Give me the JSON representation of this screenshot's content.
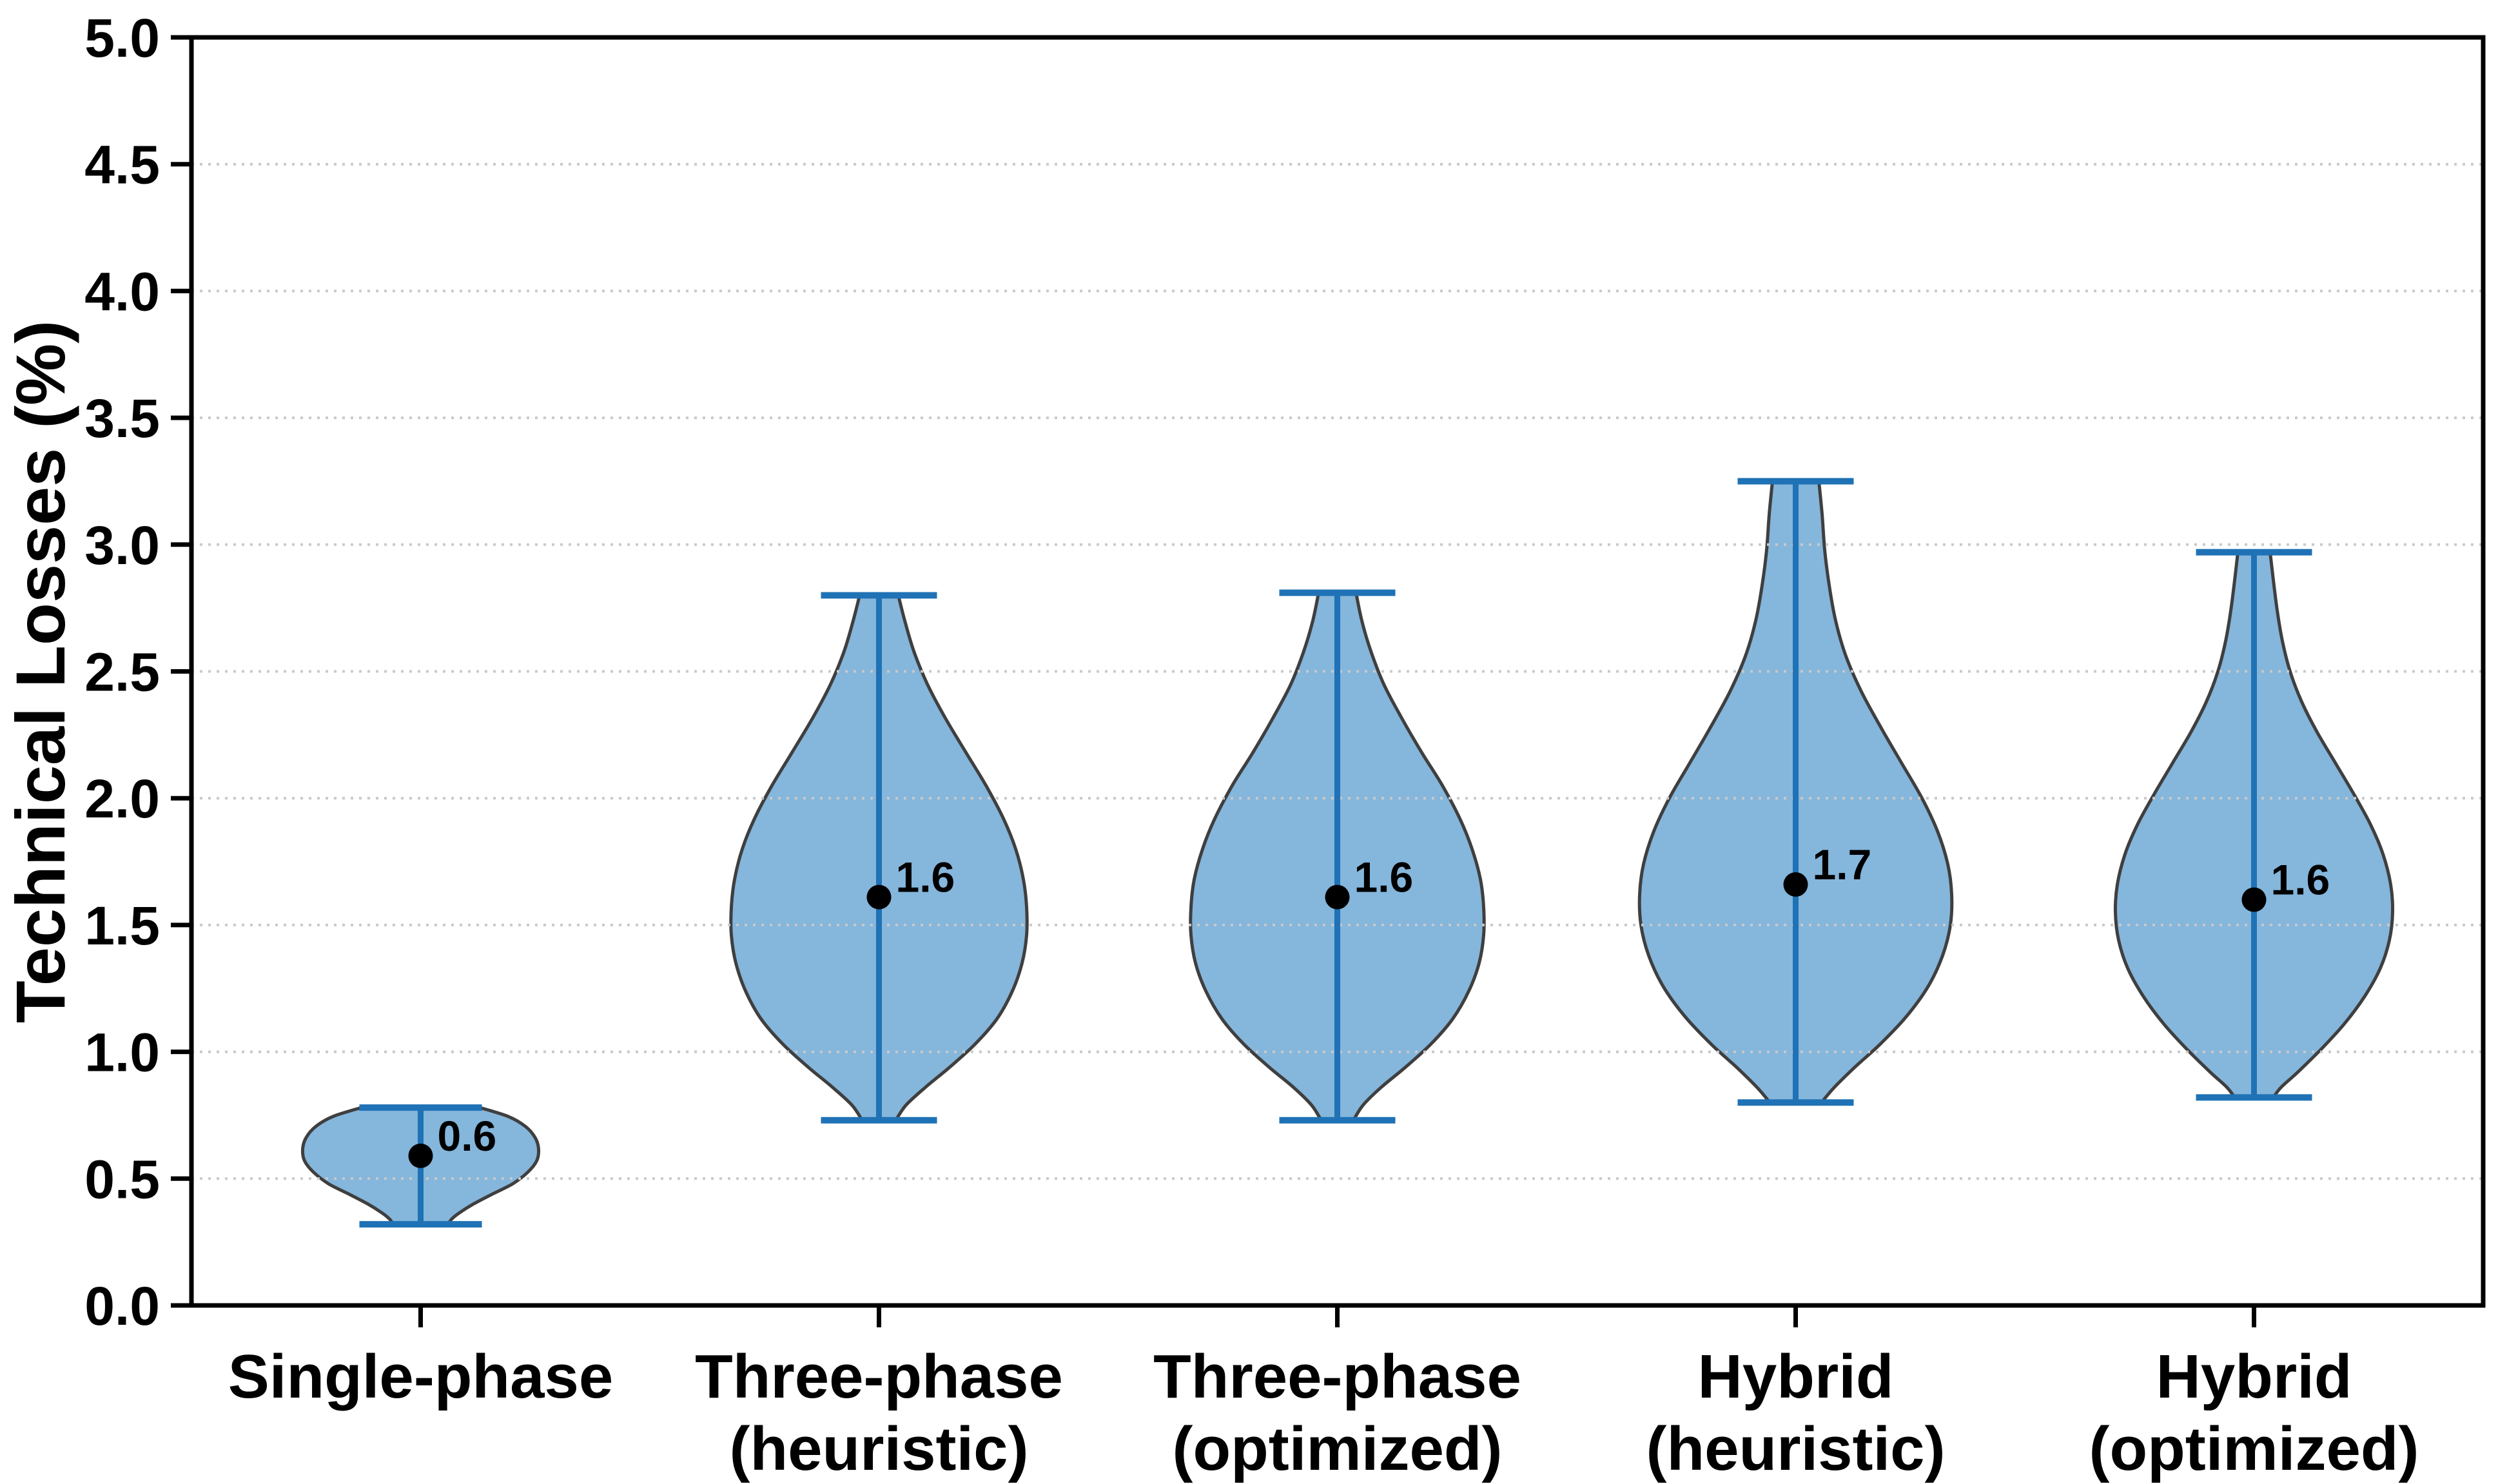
{
  "chart_data": {
    "type": "violin",
    "title": "",
    "xlabel": "",
    "ylabel": "Technical Losses (%)",
    "ylim": [
      0.0,
      5.0
    ],
    "ytick_step": 0.5,
    "ytick_labels": [
      "0.0",
      "0.5",
      "1.0",
      "1.5",
      "2.0",
      "2.5",
      "3.0",
      "3.5",
      "4.0",
      "4.5",
      "5.0"
    ],
    "grid": {
      "orientation": "horizontal",
      "style": "dotted",
      "values": [
        0.5,
        1.0,
        1.5,
        2.0,
        2.5,
        3.0,
        3.5,
        4.0,
        4.5
      ]
    },
    "legend": null,
    "categories": [
      "Single-phase",
      "Three-phase (heuristic)",
      "Three-phase (optimized)",
      "Hybrid (heuristic)",
      "Hybrid (optimized)"
    ],
    "category_label_lines": [
      [
        "Single-phase"
      ],
      [
        "Three-phase",
        "(heuristic)"
      ],
      [
        "Three-phase",
        "(optimized)"
      ],
      [
        "Hybrid",
        "(heuristic)"
      ],
      [
        "Hybrid",
        "(optimized)"
      ]
    ],
    "violins": [
      {
        "name": "Single-phase",
        "mean": 0.59,
        "mean_label": "0.6",
        "whisker_low": 0.32,
        "whisker_high": 0.78,
        "cap_halfwidth": 95,
        "profile": [
          [
            0.78,
            92
          ],
          [
            0.745,
            136
          ],
          [
            0.705,
            163
          ],
          [
            0.66,
            178
          ],
          [
            0.615,
            183
          ],
          [
            0.57,
            180
          ],
          [
            0.525,
            166
          ],
          [
            0.48,
            143
          ],
          [
            0.44,
            112
          ],
          [
            0.4,
            82
          ],
          [
            0.365,
            60
          ],
          [
            0.34,
            48
          ],
          [
            0.32,
            43
          ]
        ]
      },
      {
        "name": "Three-phase (heuristic)",
        "mean": 1.61,
        "mean_label": "1.6",
        "whisker_low": 0.73,
        "whisker_high": 2.8,
        "cap_halfwidth": 90,
        "profile": [
          [
            2.8,
            30
          ],
          [
            2.7,
            40
          ],
          [
            2.58,
            54
          ],
          [
            2.45,
            75
          ],
          [
            2.32,
            102
          ],
          [
            2.18,
            135
          ],
          [
            2.05,
            166
          ],
          [
            1.92,
            193
          ],
          [
            1.8,
            212
          ],
          [
            1.68,
            224
          ],
          [
            1.57,
            229
          ],
          [
            1.46,
            229
          ],
          [
            1.35,
            222
          ],
          [
            1.24,
            207
          ],
          [
            1.13,
            183
          ],
          [
            1.03,
            149
          ],
          [
            0.94,
            110
          ],
          [
            0.86,
            72
          ],
          [
            0.79,
            42
          ],
          [
            0.73,
            26
          ]
        ]
      },
      {
        "name": "Three-phase (optimized)",
        "mean": 1.61,
        "mean_label": "1.6",
        "whisker_low": 0.73,
        "whisker_high": 2.81,
        "cap_halfwidth": 90,
        "profile": [
          [
            2.81,
            29
          ],
          [
            2.7,
            38
          ],
          [
            2.58,
            52
          ],
          [
            2.45,
            72
          ],
          [
            2.32,
            99
          ],
          [
            2.18,
            131
          ],
          [
            2.05,
            163
          ],
          [
            1.92,
            190
          ],
          [
            1.8,
            209
          ],
          [
            1.68,
            222
          ],
          [
            1.57,
            227
          ],
          [
            1.46,
            227
          ],
          [
            1.35,
            220
          ],
          [
            1.24,
            204
          ],
          [
            1.13,
            179
          ],
          [
            1.03,
            145
          ],
          [
            0.94,
            106
          ],
          [
            0.86,
            68
          ],
          [
            0.79,
            40
          ],
          [
            0.73,
            25
          ]
        ]
      },
      {
        "name": "Hybrid (heuristic)",
        "mean": 1.66,
        "mean_label": "1.7",
        "whisker_low": 0.8,
        "whisker_high": 3.25,
        "cap_halfwidth": 90,
        "profile": [
          [
            3.25,
            36
          ],
          [
            3.12,
            41
          ],
          [
            2.98,
            45
          ],
          [
            2.84,
            52
          ],
          [
            2.7,
            62
          ],
          [
            2.56,
            78
          ],
          [
            2.42,
            102
          ],
          [
            2.28,
            132
          ],
          [
            2.14,
            164
          ],
          [
            2.0,
            196
          ],
          [
            1.87,
            220
          ],
          [
            1.74,
            236
          ],
          [
            1.62,
            242
          ],
          [
            1.5,
            240
          ],
          [
            1.38,
            228
          ],
          [
            1.26,
            206
          ],
          [
            1.14,
            172
          ],
          [
            1.03,
            131
          ],
          [
            0.94,
            92
          ],
          [
            0.86,
            60
          ],
          [
            0.8,
            40
          ]
        ]
      },
      {
        "name": "Hybrid (optimized)",
        "mean": 1.6,
        "mean_label": "1.6",
        "whisker_low": 0.82,
        "whisker_high": 2.97,
        "cap_halfwidth": 90,
        "profile": [
          [
            2.97,
            25
          ],
          [
            2.86,
            30
          ],
          [
            2.74,
            36
          ],
          [
            2.62,
            44
          ],
          [
            2.5,
            56
          ],
          [
            2.38,
            74
          ],
          [
            2.26,
            98
          ],
          [
            2.14,
            126
          ],
          [
            2.02,
            154
          ],
          [
            1.9,
            180
          ],
          [
            1.78,
            200
          ],
          [
            1.66,
            212
          ],
          [
            1.55,
            215
          ],
          [
            1.44,
            210
          ],
          [
            1.33,
            196
          ],
          [
            1.22,
            172
          ],
          [
            1.11,
            140
          ],
          [
            1.01,
            104
          ],
          [
            0.92,
            68
          ],
          [
            0.86,
            42
          ],
          [
            0.82,
            30
          ]
        ]
      }
    ],
    "colors": {
      "violin_fill": "#4b94cb",
      "violin_fill_opacity": 0.68,
      "violin_edge": "#3f3f3f",
      "stat_line": "#1f72b5",
      "mean_dot": "#000000",
      "gridline": "#c9c9c9",
      "axis": "#000000",
      "background": "#ffffff"
    }
  }
}
